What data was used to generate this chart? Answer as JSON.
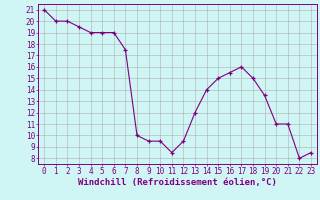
{
  "x": [
    0,
    1,
    2,
    3,
    4,
    5,
    6,
    7,
    8,
    9,
    10,
    11,
    12,
    13,
    14,
    15,
    16,
    17,
    18,
    19,
    20,
    21,
    22,
    23
  ],
  "y": [
    21.0,
    20.0,
    20.0,
    19.5,
    19.0,
    19.0,
    19.0,
    17.5,
    10.0,
    9.5,
    9.5,
    8.5,
    9.5,
    12.0,
    14.0,
    15.0,
    15.5,
    16.0,
    15.0,
    13.5,
    11.0,
    11.0,
    8.0,
    8.5
  ],
  "xlim": [
    -0.5,
    23.5
  ],
  "ylim": [
    7.5,
    21.5
  ],
  "yticks": [
    8,
    9,
    10,
    11,
    12,
    13,
    14,
    15,
    16,
    17,
    18,
    19,
    20,
    21
  ],
  "xticks": [
    0,
    1,
    2,
    3,
    4,
    5,
    6,
    7,
    8,
    9,
    10,
    11,
    12,
    13,
    14,
    15,
    16,
    17,
    18,
    19,
    20,
    21,
    22,
    23
  ],
  "xlabel": "Windchill (Refroidissement éolien,°C)",
  "line_color": "#800080",
  "marker": "+",
  "bg_color": "#cff5f5",
  "grid_color": "#b0b0b0",
  "tick_fontsize": 5.5,
  "xlabel_fontsize": 6.5
}
